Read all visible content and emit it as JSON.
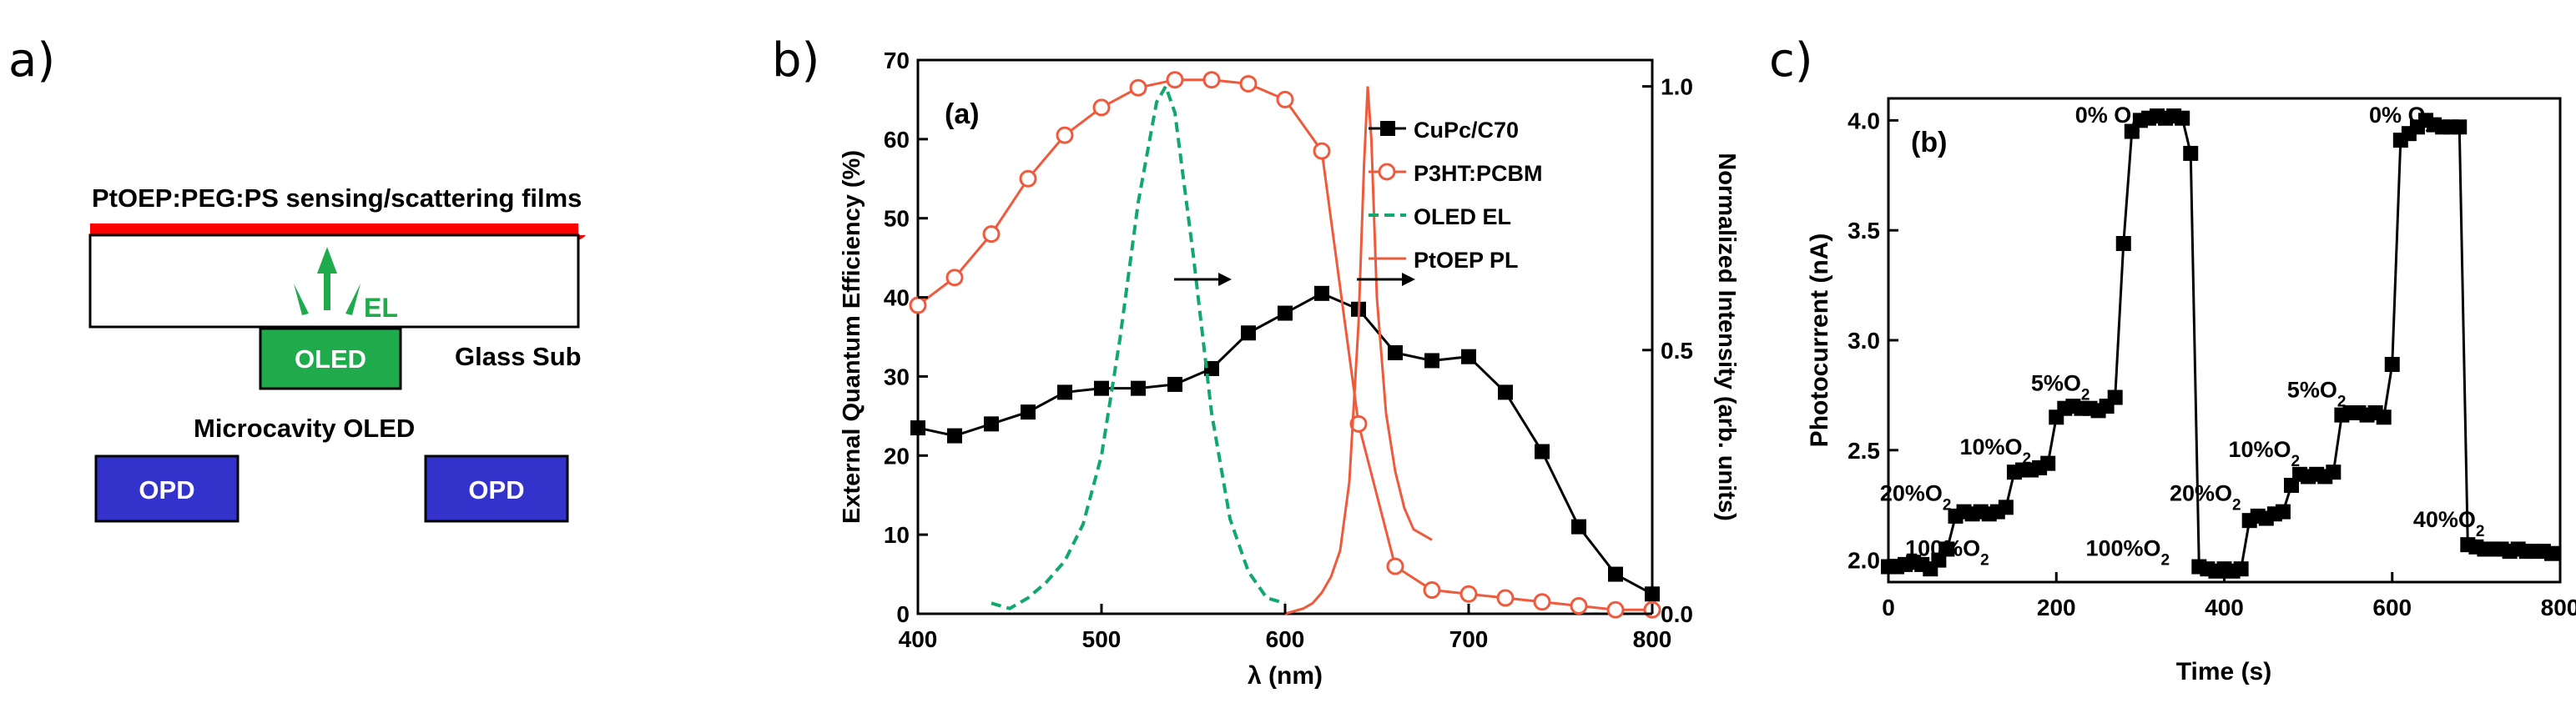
{
  "panel_labels": {
    "a": "a)",
    "b": "b)",
    "c": "c)"
  },
  "schematic": {
    "film_label": "PtOEP:PEG:PS sensing/scattering films",
    "el_label": "EL",
    "oled_label": "OLED",
    "glass_label": "Glass Sub",
    "microcavity_label": "Microcavity OLED",
    "opd_left": "OPD",
    "opd_right": "OPD",
    "colors": {
      "film": "#ff0000",
      "oled": "#1faa4b",
      "el": "#1faa4b",
      "opd": "#3333cc"
    }
  },
  "chart_data": [
    {
      "type": "line",
      "title": "",
      "inset_label": "(a)",
      "xlabel": "λ (nm)",
      "ylabel": "External Quantum Efficiency (%)",
      "ylabel_right": "Normalized Intensity (arb. units)",
      "xlim": [
        400,
        800
      ],
      "ylim": [
        0,
        70
      ],
      "ylim_right": [
        0,
        1.05
      ],
      "x_ticks": [
        400,
        500,
        600,
        700,
        800
      ],
      "y_ticks": [
        0,
        10,
        20,
        30,
        40,
        50,
        60,
        70
      ],
      "y_ticks_right": [
        0.0,
        0.5,
        1.0
      ],
      "y_tick_labels_right": [
        "0.0",
        "0.5",
        "1.0"
      ],
      "legend": [
        "CuPc/C70",
        "P3HT:PCBM",
        "OLED EL",
        "PtOEP PL"
      ],
      "colors": {
        "cupc": "#000000",
        "p3ht": "#f05a3c",
        "oled": "#11a86e",
        "ptoep": "#f05a3c"
      },
      "series": [
        {
          "name": "CuPc/C70",
          "axis": "left",
          "marker": "square",
          "x": [
            400,
            420,
            440,
            460,
            480,
            500,
            520,
            540,
            560,
            580,
            600,
            620,
            640,
            660,
            680,
            700,
            720,
            740,
            760,
            780,
            800
          ],
          "y": [
            23.5,
            22.5,
            24,
            25.5,
            28,
            28.5,
            28.5,
            29,
            31,
            35.5,
            38,
            40.5,
            38.5,
            33,
            32,
            32.5,
            28,
            20.5,
            11,
            5,
            2.5
          ]
        },
        {
          "name": "P3HT:PCBM",
          "axis": "left",
          "marker": "circle",
          "x": [
            400,
            420,
            440,
            460,
            480,
            500,
            520,
            540,
            560,
            580,
            600,
            620,
            640,
            660,
            680,
            700,
            720,
            740,
            760,
            780,
            800
          ],
          "y": [
            39,
            42.5,
            48,
            55,
            60.5,
            64,
            66.5,
            67.5,
            67.5,
            67,
            65,
            58.5,
            24,
            6,
            3,
            2.5,
            2,
            1.5,
            1,
            0.5,
            0.5
          ]
        },
        {
          "name": "OLED EL",
          "axis": "right",
          "marker": "none",
          "style": "dashed",
          "x": [
            440,
            450,
            460,
            470,
            480,
            490,
            500,
            510,
            520,
            530,
            535,
            540,
            550,
            560,
            570,
            580,
            590,
            600
          ],
          "y": [
            0.02,
            0.01,
            0.03,
            0.06,
            0.1,
            0.17,
            0.3,
            0.52,
            0.78,
            0.97,
            1.0,
            0.95,
            0.68,
            0.38,
            0.18,
            0.08,
            0.03,
            0.02
          ]
        },
        {
          "name": "PtOEP PL",
          "axis": "right",
          "marker": "none",
          "x": [
            600,
            610,
            615,
            620,
            625,
            630,
            635,
            640,
            643,
            645,
            647,
            650,
            655,
            660,
            665,
            670,
            680
          ],
          "y": [
            0.0,
            0.01,
            0.02,
            0.04,
            0.07,
            0.12,
            0.25,
            0.55,
            0.85,
            1.0,
            0.9,
            0.6,
            0.38,
            0.27,
            0.2,
            0.16,
            0.14
          ]
        }
      ],
      "annotations": [
        "→",
        "→"
      ]
    },
    {
      "type": "line",
      "title": "",
      "inset_label": "(b)",
      "xlabel": "Time (s)",
      "ylabel": "Photocurrent (nA)",
      "xlim": [
        0,
        800
      ],
      "ylim": [
        1.9,
        4.1
      ],
      "x_ticks": [
        0,
        200,
        400,
        600,
        800
      ],
      "y_ticks": [
        2.0,
        2.5,
        3.0,
        3.5,
        4.0
      ],
      "y_tick_labels": [
        "2.0",
        "2.5",
        "3.0",
        "3.5",
        "4.0"
      ],
      "series": [
        {
          "name": "Photocurrent",
          "marker": "square",
          "color": "#000000",
          "x": [
            0,
            10,
            20,
            30,
            40,
            50,
            60,
            70,
            80,
            90,
            100,
            110,
            120,
            130,
            140,
            150,
            160,
            170,
            180,
            190,
            200,
            210,
            220,
            230,
            240,
            250,
            260,
            270,
            280,
            290,
            300,
            310,
            320,
            330,
            340,
            350,
            360,
            370,
            380,
            390,
            400,
            410,
            420,
            430,
            440,
            450,
            460,
            470,
            480,
            490,
            500,
            510,
            520,
            530,
            540,
            550,
            560,
            570,
            580,
            590,
            600,
            610,
            620,
            630,
            640,
            650,
            660,
            670,
            680,
            690,
            700,
            710,
            720,
            730,
            740,
            750,
            760,
            770,
            780,
            790
          ],
          "y": [
            1.97,
            1.97,
            1.98,
            1.99,
            1.98,
            1.96,
            2.0,
            2.05,
            2.2,
            2.22,
            2.21,
            2.22,
            2.21,
            2.22,
            2.24,
            2.4,
            2.41,
            2.41,
            2.42,
            2.44,
            2.65,
            2.69,
            2.7,
            2.69,
            2.69,
            2.68,
            2.7,
            2.74,
            3.44,
            3.95,
            4.0,
            4.01,
            4.02,
            4.01,
            4.02,
            4.01,
            3.85,
            1.97,
            1.96,
            1.95,
            1.96,
            1.95,
            1.96,
            2.18,
            2.2,
            2.19,
            2.21,
            2.22,
            2.34,
            2.39,
            2.38,
            2.39,
            2.38,
            2.4,
            2.66,
            2.67,
            2.67,
            2.66,
            2.67,
            2.65,
            2.89,
            3.91,
            3.94,
            3.97,
            4.0,
            3.98,
            3.97,
            3.97,
            3.97,
            2.07,
            2.06,
            2.05,
            2.05,
            2.05,
            2.04,
            2.05,
            2.04,
            2.04,
            2.04,
            2.03
          ]
        }
      ],
      "annotations": [
        {
          "text": "0% O",
          "sub": "2",
          "x": 300,
          "y": 4.02
        },
        {
          "text": "5%O",
          "sub": "2",
          "x": 240,
          "y": 2.8
        },
        {
          "text": "10%O",
          "sub": "2",
          "x": 170,
          "y": 2.51
        },
        {
          "text": "20%O",
          "sub": "2",
          "x": 75,
          "y": 2.3
        },
        {
          "text": "100%O",
          "sub": "2",
          "x": 120,
          "y": 2.05
        },
        {
          "text": "100%O",
          "sub": "2",
          "x": 335,
          "y": 2.05
        },
        {
          "text": "0% O",
          "sub": "2",
          "x": 650,
          "y": 4.02
        },
        {
          "text": "5%O",
          "sub": "2",
          "x": 545,
          "y": 2.77
        },
        {
          "text": "10%O",
          "sub": "2",
          "x": 490,
          "y": 2.5
        },
        {
          "text": "20%O",
          "sub": "2",
          "x": 420,
          "y": 2.3
        },
        {
          "text": "40%O",
          "sub": "2",
          "x": 710,
          "y": 2.18
        }
      ]
    }
  ]
}
